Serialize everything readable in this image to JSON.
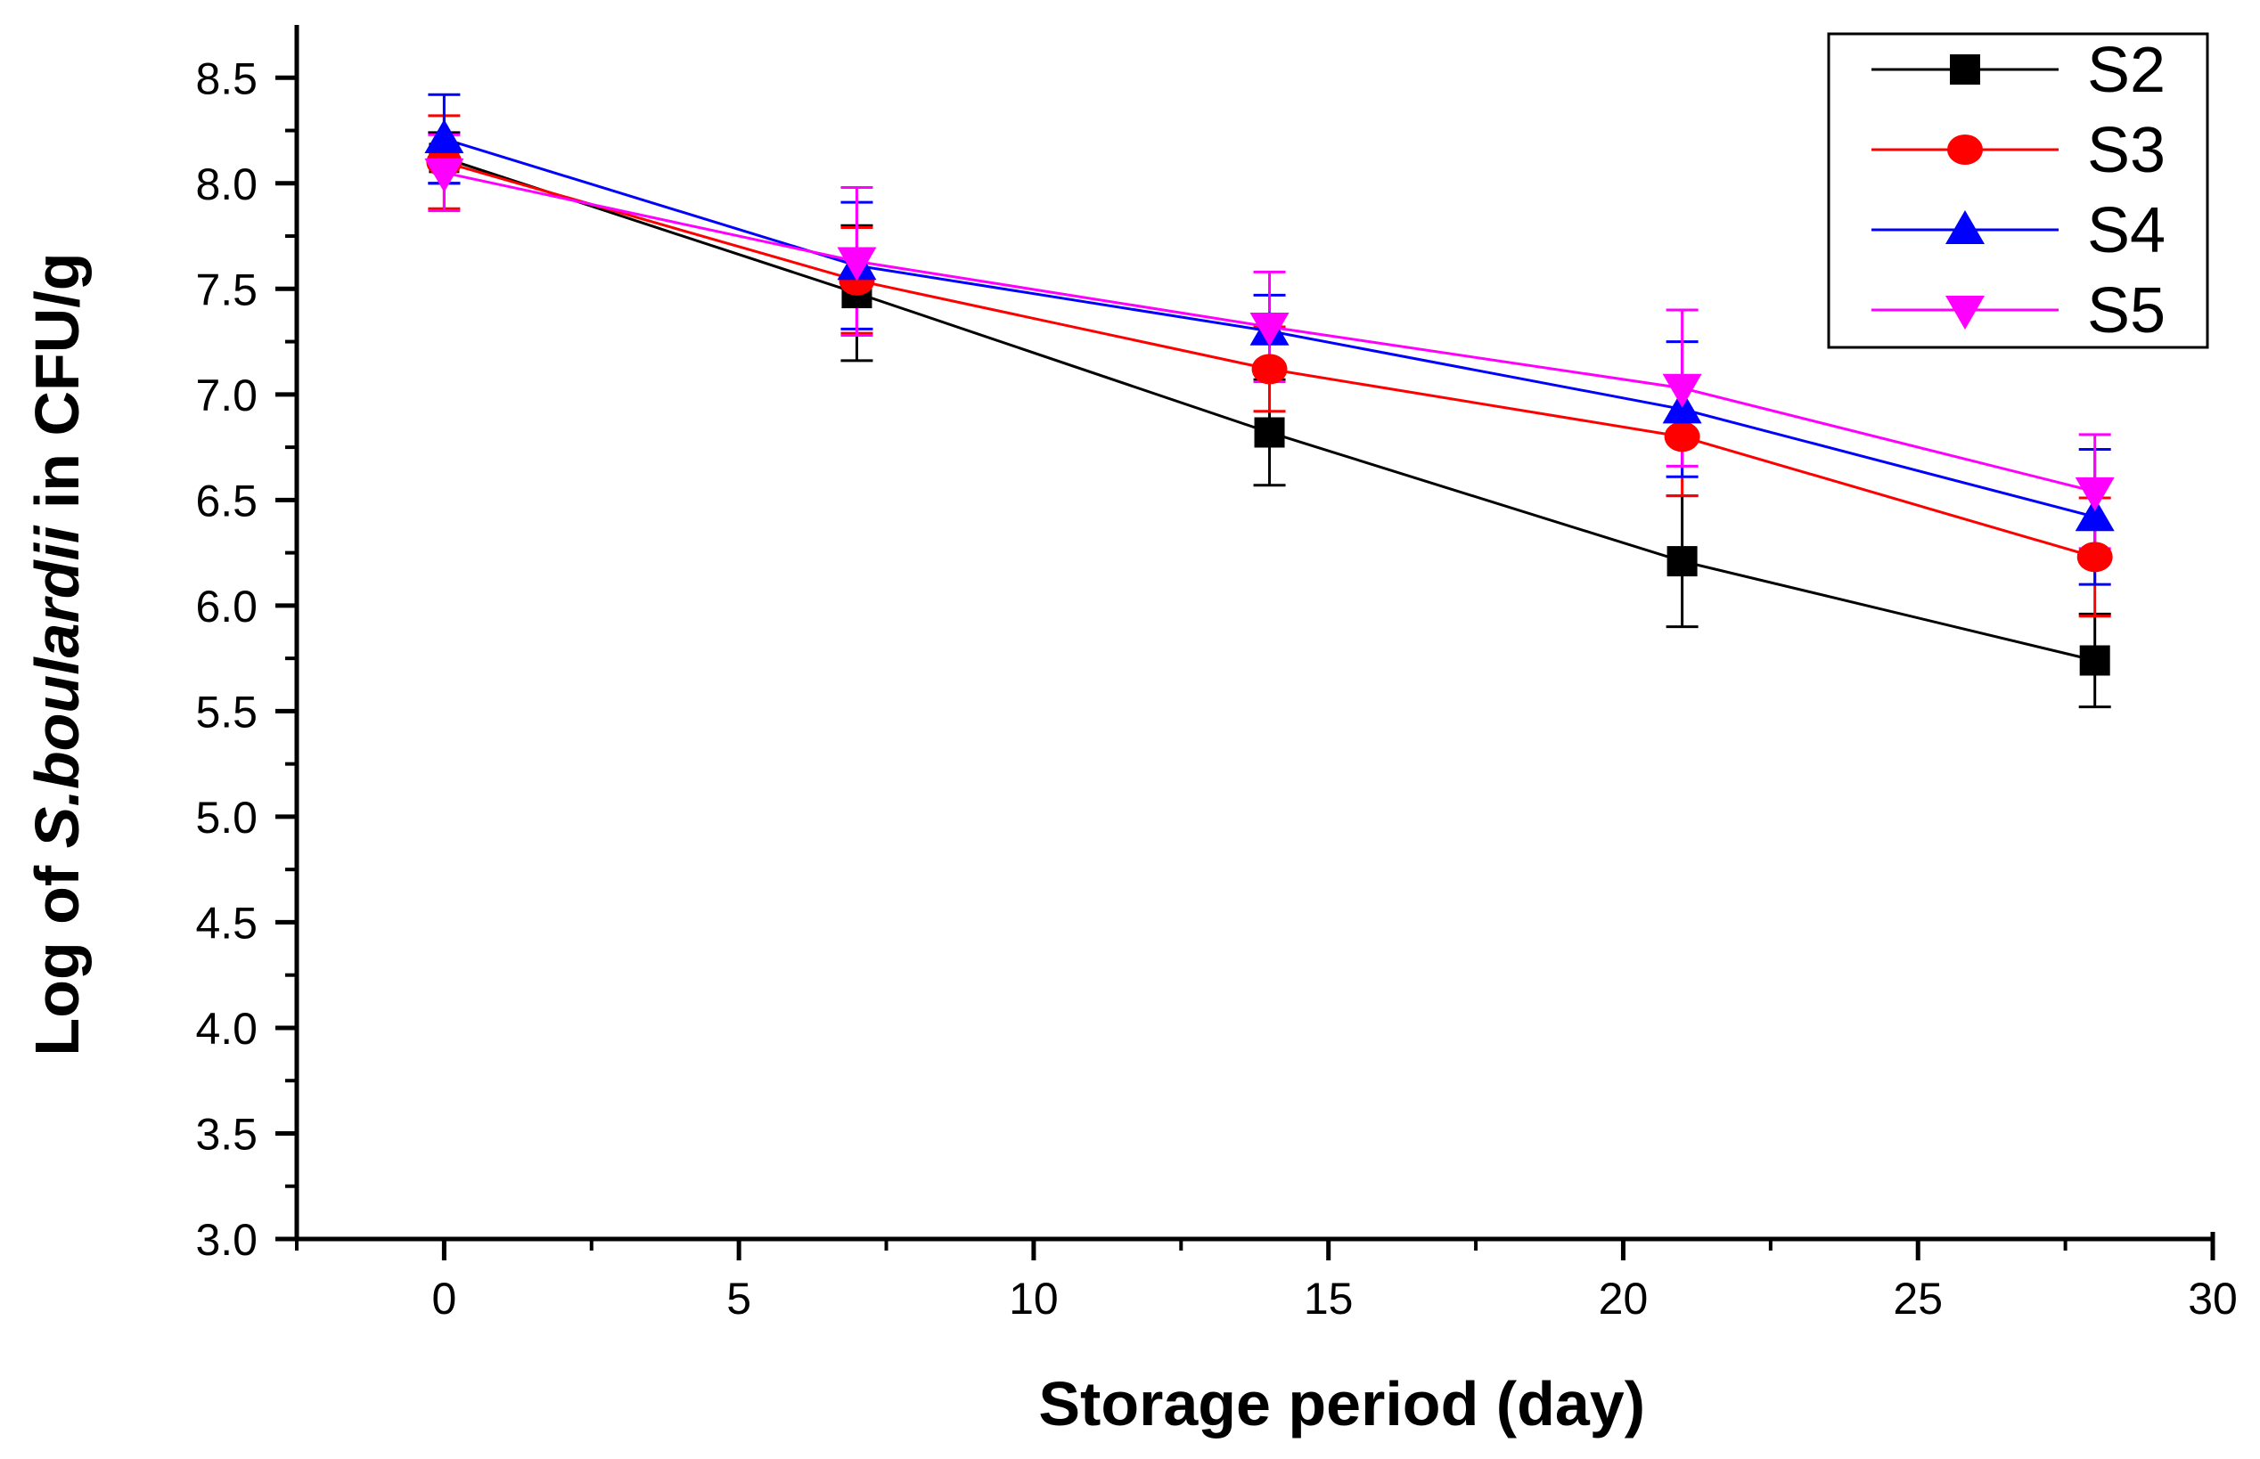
{
  "chart_data": {
    "type": "line",
    "title": "",
    "xlabel": "Storage period (day)",
    "ylabel": {
      "prefix": "Log of ",
      "italic": "S.boulardii",
      "suffix": " in CFU/g"
    },
    "xlim": [
      -2.5,
      30
    ],
    "ylim": [
      3.0,
      8.75
    ],
    "x_ticks": [
      0,
      5,
      10,
      15,
      20,
      25,
      30
    ],
    "x_tick_labels": [
      "0",
      "5",
      "10",
      "15",
      "20",
      "25",
      "30"
    ],
    "y_ticks": [
      3.0,
      3.5,
      4.0,
      4.5,
      5.0,
      5.5,
      6.0,
      6.5,
      7.0,
      7.5,
      8.0,
      8.5
    ],
    "y_tick_labels": [
      "3.0",
      "3.5",
      "4.0",
      "4.5",
      "5.0",
      "5.5",
      "6.0",
      "6.5",
      "7.0",
      "7.5",
      "8.0",
      "8.5"
    ],
    "grid": false,
    "legend_position": "top-right",
    "x": [
      0,
      7,
      14,
      21,
      28
    ],
    "series": [
      {
        "name": "S2",
        "color": "#000000",
        "marker": "square",
        "values": [
          8.12,
          7.48,
          6.82,
          6.21,
          5.74
        ],
        "errors": [
          0.12,
          0.32,
          0.25,
          0.31,
          0.22
        ]
      },
      {
        "name": "S3",
        "color": "#ff0000",
        "marker": "circle",
        "values": [
          8.1,
          7.54,
          7.12,
          6.8,
          6.23
        ],
        "errors": [
          0.22,
          0.25,
          0.2,
          0.28,
          0.28
        ]
      },
      {
        "name": "S4",
        "color": "#0000ff",
        "marker": "triangle-up",
        "values": [
          8.21,
          7.61,
          7.3,
          6.93,
          6.42
        ],
        "errors": [
          0.21,
          0.3,
          0.17,
          0.32,
          0.32
        ]
      },
      {
        "name": "S5",
        "color": "#ff00ff",
        "marker": "triangle-down",
        "values": [
          8.05,
          7.63,
          7.32,
          7.03,
          6.54
        ],
        "errors": [
          0.18,
          0.35,
          0.26,
          0.37,
          0.27
        ]
      }
    ]
  }
}
